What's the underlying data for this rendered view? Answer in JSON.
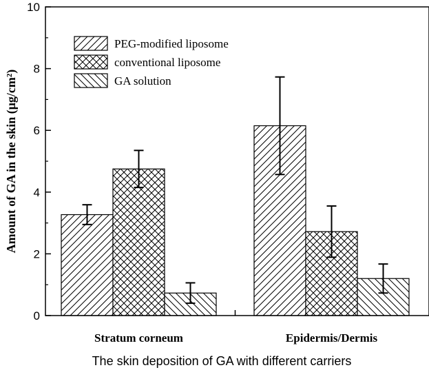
{
  "chart_data": {
    "type": "bar",
    "categories": [
      "Stratum corneum",
      "Epidermis/Dermis"
    ],
    "series": [
      {
        "name": "PEG-modified liposome",
        "values": [
          3.27,
          6.15
        ],
        "errors": [
          0.32,
          1.58
        ],
        "pattern": "diag-right"
      },
      {
        "name": "conventional liposome",
        "values": [
          4.75,
          2.72
        ],
        "errors": [
          0.6,
          0.83
        ],
        "pattern": "crosshatch"
      },
      {
        "name": "GA solution",
        "values": [
          0.73,
          1.2
        ],
        "errors": [
          0.33,
          0.47
        ],
        "pattern": "diag-left"
      }
    ],
    "xlabel": "The skin deposition of GA with different carriers",
    "ylabel": "Amount of GA in the skin (μg/cm²)",
    "ylim": [
      0,
      10
    ],
    "yticks": [
      "0",
      "2",
      "4",
      "6",
      "8",
      "10"
    ],
    "grid": false,
    "legend_position": "top-left"
  }
}
